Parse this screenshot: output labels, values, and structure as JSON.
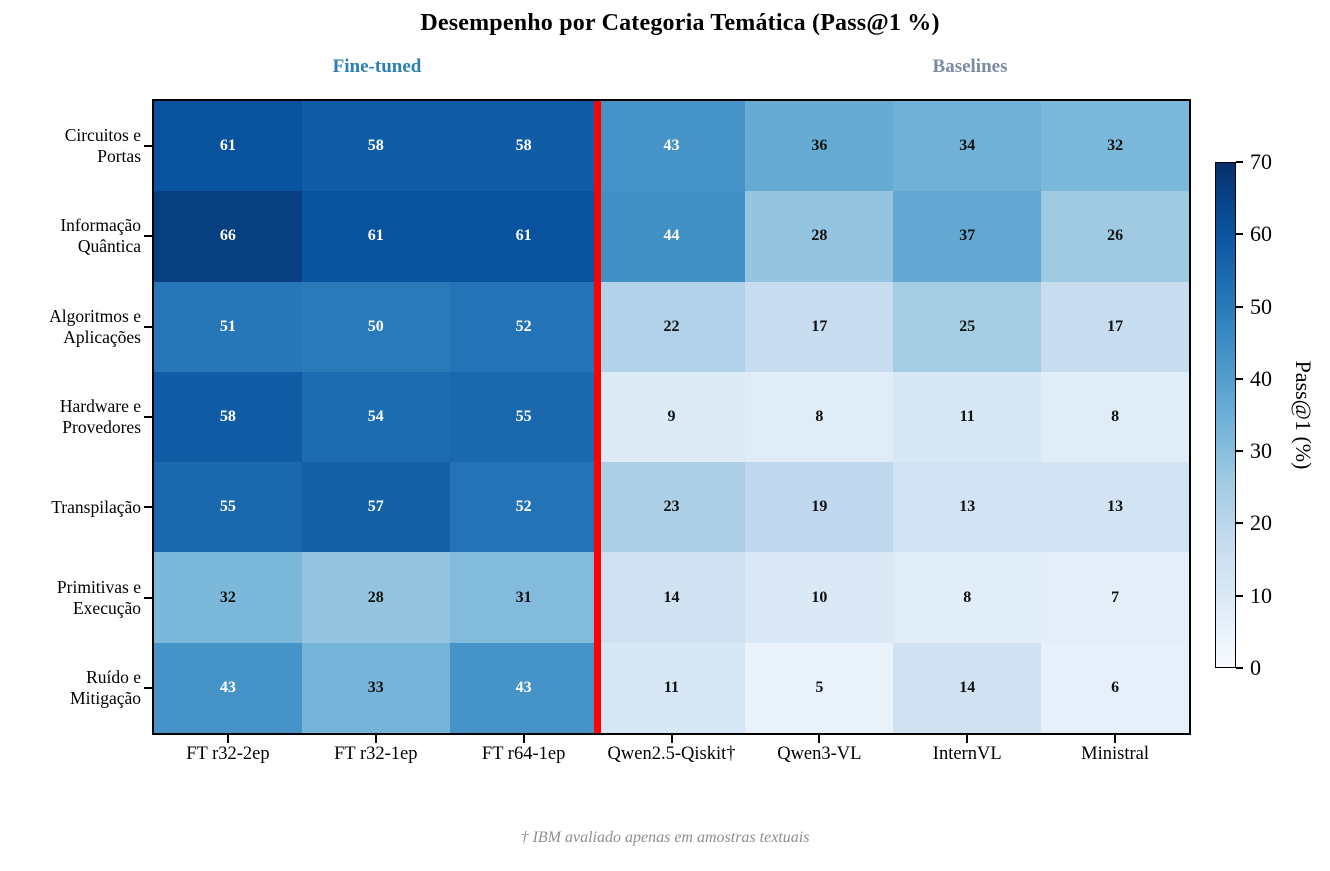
{
  "title": "Desempenho por Categoria Temática (Pass@1 %)",
  "annotations": {
    "fine_tuned_label": "Fine-tuned",
    "baselines_label": "Baselines",
    "footnote": "† IBM avaliado apenas em amostras textuais"
  },
  "colors": {
    "fine_tuned_label": "#2b7fb5",
    "baselines_label": "#7b8aa5",
    "separator": "#ff0000",
    "cell_text_light": "#ffffff",
    "cell_text_dark": "#111111",
    "footnote_text": "#8e8e8e",
    "axis_and_ticks": "#000000"
  },
  "chart_data": {
    "type": "heatmap",
    "title": "Desempenho por Categoria Temática (Pass@1 %)",
    "colormap": "Blues",
    "vmin": 0,
    "vmax": 70,
    "rows": [
      "Circuitos e\nPortas",
      "Informação\nQuântica",
      "Algoritmos e\nAplicações",
      "Hardware e\nProvedores",
      "Transpilação",
      "Primitivas e\nExecução",
      "Ruído e\nMitigação"
    ],
    "columns": [
      "FT r32-2ep",
      "FT r32-1ep",
      "FT r64-1ep",
      "Qwen2.5-Qiskit†",
      "Qwen3-VL",
      "InternVL",
      "Ministral"
    ],
    "values": [
      [
        61,
        58,
        58,
        43,
        36,
        34,
        32
      ],
      [
        66,
        61,
        61,
        44,
        28,
        37,
        26
      ],
      [
        51,
        50,
        52,
        22,
        17,
        25,
        17
      ],
      [
        58,
        54,
        55,
        9,
        8,
        11,
        8
      ],
      [
        55,
        57,
        52,
        23,
        19,
        13,
        13
      ],
      [
        32,
        28,
        31,
        14,
        10,
        8,
        7
      ],
      [
        43,
        33,
        43,
        11,
        5,
        14,
        6
      ]
    ],
    "groups": [
      {
        "label": "Fine-tuned",
        "columns": [
          "FT r32-2ep",
          "FT r32-1ep",
          "FT r64-1ep"
        ]
      },
      {
        "label": "Baselines",
        "columns": [
          "Qwen2.5-Qiskit†",
          "Qwen3-VL",
          "InternVL",
          "Ministral"
        ]
      }
    ],
    "separator_after_column": 3,
    "value_text_white_above": 40,
    "colorbar": {
      "label": "Pass@1 (%)",
      "ticks": [
        0,
        10,
        20,
        30,
        40,
        50,
        60,
        70
      ]
    }
  }
}
